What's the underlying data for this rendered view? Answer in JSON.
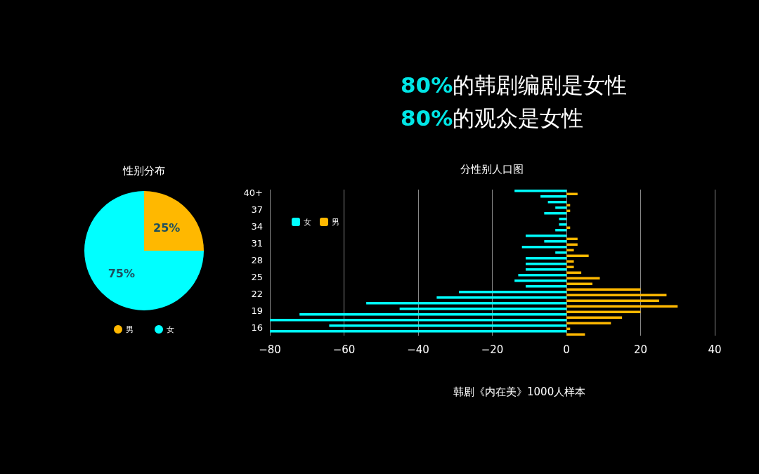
{
  "chart_data": [
    {
      "type": "pie",
      "title": "性别分布",
      "categories": [
        "男",
        "女"
      ],
      "values": [
        25,
        75
      ],
      "colors": [
        "#ffb800",
        "#00ffff"
      ],
      "value_labels": [
        "25%",
        "75%"
      ],
      "legend": "bottom"
    },
    {
      "type": "bar",
      "orientation": "horizontal",
      "title": "分性别人口图",
      "annotations": [
        "80%的韩剧编剧是女性",
        "80%的观众是女性",
        "韩剧《内在美》1000人样本"
      ],
      "categories": [
        "40+",
        null,
        null,
        "37",
        null,
        null,
        "34",
        null,
        null,
        "31",
        null,
        null,
        "28",
        null,
        null,
        "25",
        null,
        null,
        "22",
        null,
        null,
        "19",
        null,
        null,
        "16",
        null
      ],
      "series": [
        {
          "name": "女",
          "color": "#00ffff",
          "values": [
            -14,
            -7,
            -5,
            -3,
            -6,
            -2,
            -2,
            -3,
            -11,
            -6,
            -12,
            -3,
            -11,
            -11,
            -11,
            -13,
            -14,
            -11,
            -29,
            -35,
            -54,
            -45,
            -72,
            -80,
            -64,
            -80
          ]
        },
        {
          "name": "男",
          "color": "#ffb800",
          "values": [
            3,
            0,
            1,
            1,
            0,
            0,
            1,
            0,
            3,
            3,
            2,
            6,
            2,
            2,
            4,
            9,
            7,
            20,
            27,
            25,
            30,
            20,
            15,
            12,
            1,
            5
          ]
        }
      ],
      "xlim": [
        -80,
        40
      ],
      "xticks": [
        {
          "value": -80,
          "label": "−80"
        },
        {
          "value": -60,
          "label": "−60"
        },
        {
          "value": -40,
          "label": "−40"
        },
        {
          "value": -20,
          "label": "−20"
        },
        0,
        20,
        40
      ],
      "grid": "x",
      "legend": "top left"
    }
  ]
}
